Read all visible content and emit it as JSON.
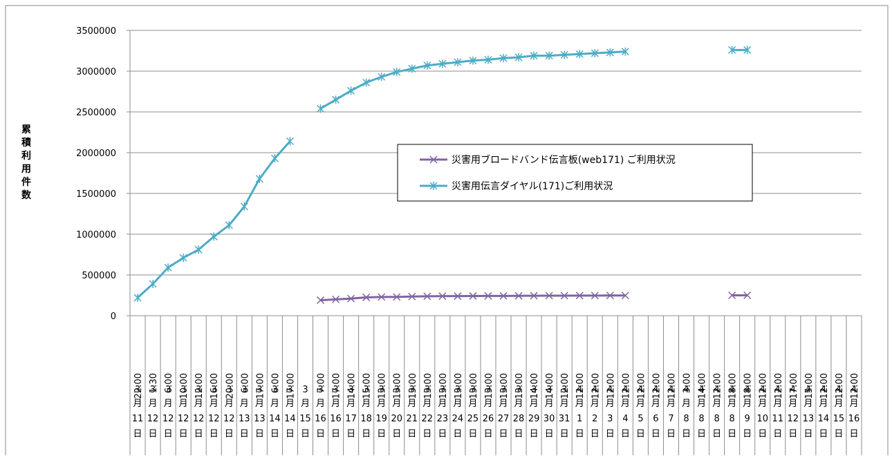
{
  "chart_data": {
    "type": "line",
    "ylabel": "累積利用件数",
    "ylim": [
      0,
      3500000
    ],
    "yticks": [
      0,
      500000,
      1000000,
      1500000,
      2000000,
      2500000,
      3000000,
      3500000
    ],
    "grid": true,
    "legend_position": "center",
    "categories": [
      {
        "time": "22:00",
        "month": "3",
        "day": "11"
      },
      {
        "time": "1:30",
        "month": "3",
        "day": "12"
      },
      {
        "time": "6:00",
        "month": "3",
        "day": "12"
      },
      {
        "time": "10:00",
        "month": "3",
        "day": "12"
      },
      {
        "time": "12:00",
        "month": "3",
        "day": "12"
      },
      {
        "time": "16:00",
        "month": "3",
        "day": "12"
      },
      {
        "time": "20:00",
        "month": "3",
        "day": "12"
      },
      {
        "time": "6:00",
        "month": "3",
        "day": "13"
      },
      {
        "time": "17:00",
        "month": "3",
        "day": "13"
      },
      {
        "time": "6:00",
        "month": "3",
        "day": "14"
      },
      {
        "time": "17:00",
        "month": "3",
        "day": "14"
      },
      {
        "time": "",
        "month": "3",
        "day": "15"
      },
      {
        "time": "7:00",
        "month": "3",
        "day": "16"
      },
      {
        "time": "17:00",
        "month": "3",
        "day": "16"
      },
      {
        "time": "14:00",
        "month": "3",
        "day": "17"
      },
      {
        "time": "15:00",
        "month": "3",
        "day": "18"
      },
      {
        "time": "13:00",
        "month": "3",
        "day": "19"
      },
      {
        "time": "13:00",
        "month": "3",
        "day": "20"
      },
      {
        "time": "13:00",
        "month": "3",
        "day": "21"
      },
      {
        "time": "13:00",
        "month": "3",
        "day": "22"
      },
      {
        "time": "13:00",
        "month": "3",
        "day": "23"
      },
      {
        "time": "13:00",
        "month": "3",
        "day": "24"
      },
      {
        "time": "13:00",
        "month": "3",
        "day": "25"
      },
      {
        "time": "13:00",
        "month": "3",
        "day": "26"
      },
      {
        "time": "13:00",
        "month": "3",
        "day": "27"
      },
      {
        "time": "13:00",
        "month": "3",
        "day": "28"
      },
      {
        "time": "14:00",
        "month": "3",
        "day": "29"
      },
      {
        "time": "14:00",
        "month": "3",
        "day": "30"
      },
      {
        "time": "12:00",
        "month": "3",
        "day": "31"
      },
      {
        "time": "12:00",
        "month": "4",
        "day": "1"
      },
      {
        "time": "12:00",
        "month": "4",
        "day": "2"
      },
      {
        "time": "12:00",
        "month": "4",
        "day": "3"
      },
      {
        "time": "12:00",
        "month": "4",
        "day": "4"
      },
      {
        "time": "12:00",
        "month": "4",
        "day": "5"
      },
      {
        "time": "12:00",
        "month": "4",
        "day": "6"
      },
      {
        "time": "12:00",
        "month": "4",
        "day": "7"
      },
      {
        "time": "3:00",
        "month": "4",
        "day": "8"
      },
      {
        "time": "14:00",
        "month": "4",
        "day": "8"
      },
      {
        "time": "12:00",
        "month": "4",
        "day": "8"
      },
      {
        "time": "18:00",
        "month": "4",
        "day": "8"
      },
      {
        "time": "18:00",
        "month": "4",
        "day": "9"
      },
      {
        "time": "12:00",
        "month": "4",
        "day": "10"
      },
      {
        "time": "12:00",
        "month": "4",
        "day": "11"
      },
      {
        "time": "17:00",
        "month": "4",
        "day": "12"
      },
      {
        "time": "15:00",
        "month": "4",
        "day": "13"
      },
      {
        "time": "12:00",
        "month": "4",
        "day": "14"
      },
      {
        "time": "12:00",
        "month": "4",
        "day": "15"
      },
      {
        "time": "12:00",
        "month": "4",
        "day": "16"
      }
    ],
    "month_suffix": "月",
    "day_suffix": "日",
    "series": [
      {
        "name": "災害用伝言ダイヤル(171)ご利用状況",
        "color": "#4bacc6",
        "marker": "asterisk",
        "values": [
          220000,
          390000,
          590000,
          710000,
          810000,
          970000,
          1110000,
          1340000,
          1680000,
          1930000,
          2140000,
          null,
          2540000,
          2650000,
          2760000,
          2860000,
          2930000,
          2990000,
          3030000,
          3070000,
          3090000,
          3110000,
          3130000,
          3140000,
          3160000,
          3170000,
          3190000,
          3190000,
          3200000,
          3210000,
          3220000,
          3230000,
          3240000,
          null,
          null,
          null,
          null,
          null,
          null,
          3260000,
          3260000,
          null,
          null,
          null,
          null,
          null,
          null,
          null
        ]
      },
      {
        "name": "災害用ブロードバンド伝言板(web171) ご利用状況",
        "color": "#8064a2",
        "marker": "x",
        "values": [
          null,
          null,
          null,
          null,
          null,
          null,
          null,
          null,
          null,
          null,
          null,
          null,
          190000,
          200000,
          210000,
          225000,
          230000,
          230000,
          235000,
          238000,
          240000,
          240000,
          242000,
          243000,
          243000,
          244000,
          245000,
          246000,
          246000,
          247000,
          247000,
          248000,
          248000,
          null,
          null,
          null,
          null,
          null,
          null,
          250000,
          250000,
          null,
          null,
          null,
          null,
          null,
          null,
          null
        ]
      }
    ],
    "legend": [
      {
        "label": "災害用ブロードバンド伝言板(web171) ご利用状況",
        "series": 1
      },
      {
        "label": "災害用伝言ダイヤル(171)ご利用状況",
        "series": 0
      }
    ]
  }
}
